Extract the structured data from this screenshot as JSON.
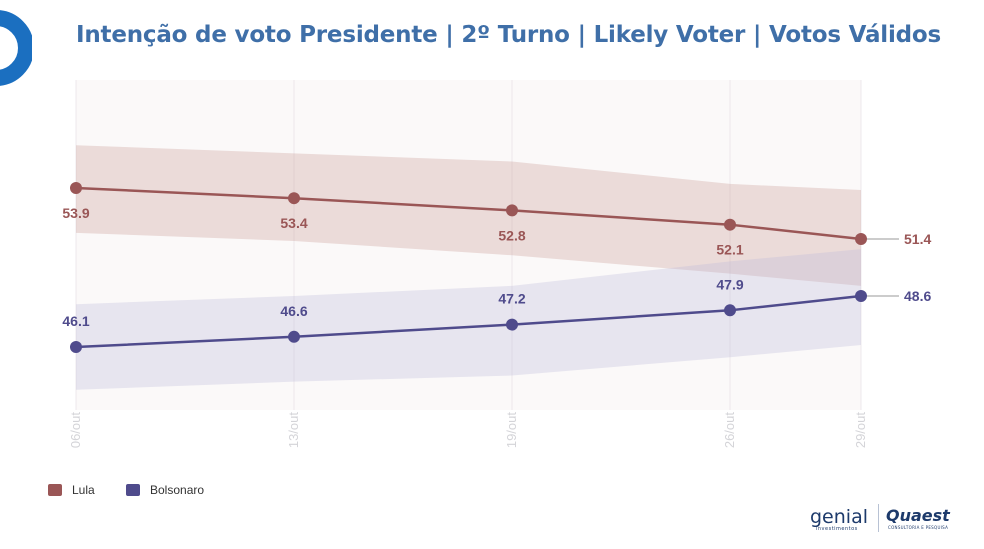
{
  "title": "Intenção de voto Presidente | 2º Turno | Likely Voter | Votos Válidos",
  "chart_data": {
    "type": "line",
    "x": [
      "06/out",
      "13/out",
      "19/out",
      "26/out",
      "29/out"
    ],
    "series": [
      {
        "name": "Lula",
        "color": "#9a5656",
        "band_color": "#c99a95",
        "values": [
          53.9,
          53.4,
          52.8,
          52.1,
          51.4
        ],
        "labels": [
          "53.9",
          "53.4",
          "52.8",
          "52.1",
          "51.4"
        ],
        "band_upper": [
          56.0,
          55.6,
          55.2,
          54.1,
          53.8
        ],
        "band_lower": [
          51.7,
          51.3,
          50.6,
          49.7,
          49.1
        ]
      },
      {
        "name": "Bolsonaro",
        "color": "#4f4b8c",
        "band_color": "#bdbbd9",
        "values": [
          46.1,
          46.6,
          47.2,
          47.9,
          48.6
        ],
        "labels": [
          "46.1",
          "46.6",
          "47.2",
          "47.9",
          "48.6"
        ],
        "band_upper": [
          48.2,
          48.6,
          49.1,
          50.3,
          50.9
        ],
        "band_lower": [
          44.0,
          44.4,
          44.7,
          45.6,
          46.2
        ]
      }
    ],
    "ylim": [
      44,
      61
    ],
    "xlabel": "",
    "ylabel": "",
    "legend_position": "bottom-left",
    "grid": "vertical"
  },
  "legend": [
    {
      "label": "Lula",
      "color": "#9a5656"
    },
    {
      "label": "Bolsonaro",
      "color": "#4f4b8c"
    }
  ],
  "brands": {
    "genial": "genial",
    "genial_sub": "investimentos",
    "quaest": "Quaest",
    "quaest_sub": "CONSULTORIA E PESQUISA"
  },
  "colors": {
    "title": "#3f6fa8",
    "logo": "#1b6fc0"
  }
}
